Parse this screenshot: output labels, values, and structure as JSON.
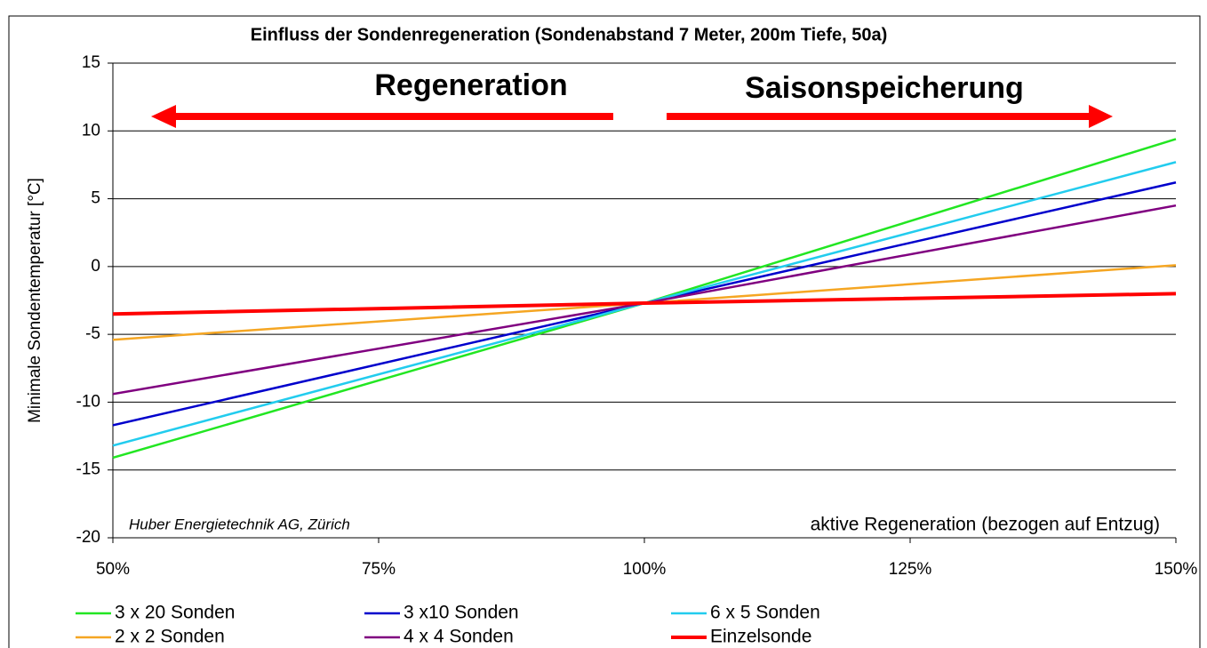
{
  "chart_data": {
    "type": "line",
    "title": "Einfluss der Sondenregeneration (Sondenabstand 7 Meter, 200m Tiefe,  50a)",
    "y_label": "Minimale Sondentemperatur  [°C]",
    "annotations": [
      "Regeneration",
      "Saisonspeicherung",
      "Huber Energietechnik AG, Zürich",
      "aktive Regeneration (bezogen auf Entzug)"
    ],
    "x": [
      50,
      100,
      150
    ],
    "xlim": [
      50,
      150
    ],
    "xticks": [
      {
        "value": 50,
        "label": "50%"
      },
      {
        "value": 75,
        "label": "75%"
      },
      {
        "value": 100,
        "label": "100%"
      },
      {
        "value": 125,
        "label": "125%"
      },
      {
        "value": 150,
        "label": "150%"
      }
    ],
    "ylim": [
      -20,
      15
    ],
    "yticks": [
      -20,
      -15,
      -10,
      -5,
      0,
      5,
      10,
      15
    ],
    "grid": true,
    "legend": "bottom",
    "series": [
      {
        "name": "3 x 20 Sonden",
        "color": "#22e622",
        "values": [
          -14.1,
          -2.7,
          9.4
        ]
      },
      {
        "name": "3 x10 Sonden",
        "color": "#0000cc",
        "values": [
          -11.7,
          -2.7,
          6.2
        ]
      },
      {
        "name": "6 x 5 Sonden",
        "color": "#22ccee",
        "values": [
          -13.2,
          -2.7,
          7.7
        ]
      },
      {
        "name": "2 x 2 Sonden",
        "color": "#f5a623",
        "values": [
          -5.4,
          -2.7,
          0.1
        ]
      },
      {
        "name": "4 x 4 Sonden",
        "color": "#800080",
        "values": [
          -9.4,
          -2.7,
          4.5
        ]
      },
      {
        "name": "Einzelsonde",
        "color": "#ff0000",
        "values": [
          -3.5,
          -2.7,
          -2.0
        ]
      }
    ]
  }
}
